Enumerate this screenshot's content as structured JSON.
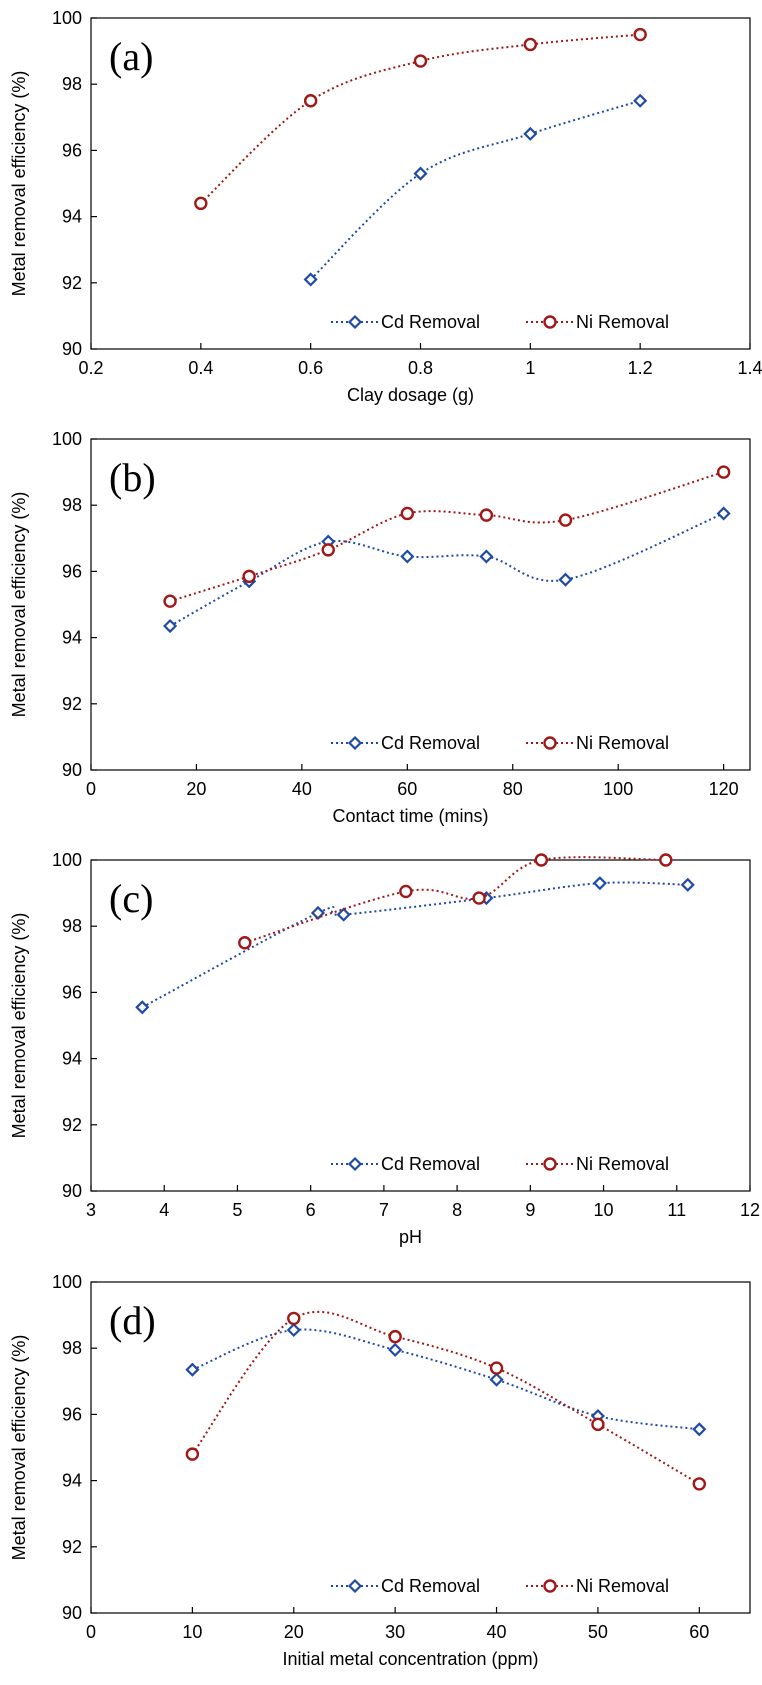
{
  "chart_data": [
    {
      "type": "line",
      "panel_label": "(a)",
      "xlabel": "Clay dosage (g)",
      "ylabel": "Metal removal efficiency (%)",
      "xlim": [
        0.2,
        1.4
      ],
      "ylim": [
        90,
        100
      ],
      "xticks": [
        0.2,
        0.4,
        0.6,
        0.8,
        1,
        1.2,
        1.4
      ],
      "xtick_labels": [
        "0.2",
        "0.4",
        "0.6",
        "0.8",
        "1",
        "1.2",
        "1.4"
      ],
      "yticks": [
        90,
        92,
        94,
        96,
        98,
        100
      ],
      "ytick_labels": [
        "90",
        "92",
        "94",
        "96",
        "98",
        "100"
      ],
      "grid": false,
      "legend_position": "bottom-right",
      "series": [
        {
          "name": "Cd Removal",
          "marker": "diamond",
          "color": "#1f4aa8",
          "x": [
            0.6,
            0.8,
            1.0,
            1.2
          ],
          "y": [
            92.1,
            95.3,
            96.5,
            97.5
          ]
        },
        {
          "name": "Ni Removal",
          "marker": "circle",
          "color": "#a01818",
          "x": [
            0.4,
            0.6,
            0.8,
            1.0,
            1.2
          ],
          "y": [
            94.4,
            97.5,
            98.7,
            99.2,
            99.5
          ]
        }
      ]
    },
    {
      "type": "line",
      "panel_label": "(b)",
      "xlabel": "Contact time (mins)",
      "ylabel": "Metal removal efficiency (%)",
      "xlim": [
        0,
        125
      ],
      "ylim": [
        90,
        100
      ],
      "xticks": [
        0,
        20,
        40,
        60,
        80,
        100,
        120
      ],
      "xtick_labels": [
        "0",
        "20",
        "40",
        "60",
        "80",
        "100",
        "120"
      ],
      "yticks": [
        90,
        92,
        94,
        96,
        98,
        100
      ],
      "ytick_labels": [
        "90",
        "92",
        "94",
        "96",
        "98",
        "100"
      ],
      "grid": false,
      "legend_position": "bottom-right",
      "series": [
        {
          "name": "Cd Removal",
          "marker": "diamond",
          "color": "#1f4aa8",
          "x": [
            15,
            30,
            45,
            60,
            75,
            90,
            120
          ],
          "y": [
            94.35,
            95.7,
            96.9,
            96.45,
            96.45,
            95.75,
            97.75
          ]
        },
        {
          "name": "Ni Removal",
          "marker": "circle",
          "color": "#a01818",
          "x": [
            15,
            30,
            45,
            60,
            75,
            90,
            120
          ],
          "y": [
            95.1,
            95.85,
            96.65,
            97.75,
            97.7,
            97.55,
            99.0
          ]
        }
      ]
    },
    {
      "type": "line",
      "panel_label": "(c)",
      "xlabel": "pH",
      "ylabel": "Metal removal efficiency (%)",
      "xlim": [
        3,
        12
      ],
      "ylim": [
        90,
        100
      ],
      "xticks": [
        3,
        4,
        5,
        6,
        7,
        8,
        9,
        10,
        11,
        12
      ],
      "xtick_labels": [
        "3",
        "4",
        "5",
        "6",
        "7",
        "8",
        "9",
        "10",
        "11",
        "12"
      ],
      "yticks": [
        90,
        92,
        94,
        96,
        98,
        100
      ],
      "ytick_labels": [
        "90",
        "92",
        "94",
        "96",
        "98",
        "100"
      ],
      "grid": false,
      "legend_position": "bottom-right",
      "series": [
        {
          "name": "Cd Removal",
          "marker": "diamond",
          "color": "#1f4aa8",
          "x": [
            3.7,
            6.1,
            6.45,
            8.4,
            9.95,
            11.15
          ],
          "y": [
            95.55,
            98.4,
            98.35,
            98.85,
            99.3,
            99.25
          ]
        },
        {
          "name": "Ni Removal",
          "marker": "circle",
          "color": "#a01818",
          "x": [
            5.1,
            7.3,
            8.3,
            9.15,
            10.85
          ],
          "y": [
            97.5,
            99.05,
            98.85,
            100.0,
            100.0
          ]
        }
      ]
    },
    {
      "type": "line",
      "panel_label": "(d)",
      "xlabel": "Initial metal concentration (ppm)",
      "ylabel": "Metal removal efficiency (%)",
      "xlim": [
        0,
        65
      ],
      "ylim": [
        90,
        100
      ],
      "xticks": [
        0,
        10,
        20,
        30,
        40,
        50,
        60
      ],
      "xtick_labels": [
        "0",
        "10",
        "20",
        "30",
        "40",
        "50",
        "60"
      ],
      "yticks": [
        90,
        92,
        94,
        96,
        98,
        100
      ],
      "ytick_labels": [
        "90",
        "92",
        "94",
        "96",
        "98",
        "100"
      ],
      "grid": false,
      "legend_position": "bottom-right",
      "series": [
        {
          "name": "Cd Removal",
          "marker": "diamond",
          "color": "#1f4aa8",
          "x": [
            10,
            20,
            30,
            40,
            50,
            60
          ],
          "y": [
            97.35,
            98.55,
            97.95,
            97.05,
            95.95,
            95.55
          ]
        },
        {
          "name": "Ni Removal",
          "marker": "circle",
          "color": "#a01818",
          "x": [
            10,
            20,
            30,
            40,
            50,
            60
          ],
          "y": [
            94.8,
            98.9,
            98.35,
            97.4,
            95.7,
            93.9
          ]
        }
      ]
    }
  ]
}
